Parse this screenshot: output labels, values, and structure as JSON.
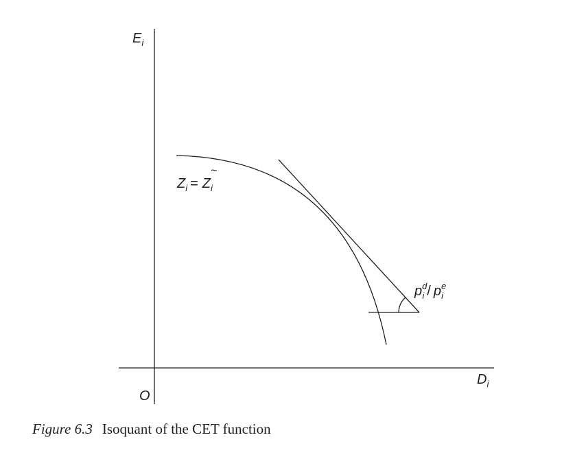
{
  "labels": {
    "y_axis": "E",
    "y_axis_sub": "i",
    "x_axis": "D",
    "x_axis_sub": "i",
    "origin": "O",
    "curve": {
      "lhs": "Z",
      "lhs_sub": "i",
      "eq": "=",
      "rhs": "Z",
      "rhs_sub": "i",
      "rhs_accent": "~"
    },
    "ratio": {
      "num": "p",
      "num_sub": "i",
      "num_sup": "d",
      "slash": "/",
      "den": "p",
      "den_sub": "i",
      "den_sup": "e"
    }
  },
  "caption": {
    "number": "Figure 6.3",
    "title": "Isoquant of the CET function"
  },
  "colors": {
    "ink": "#231f20",
    "background": "#ffffff"
  }
}
